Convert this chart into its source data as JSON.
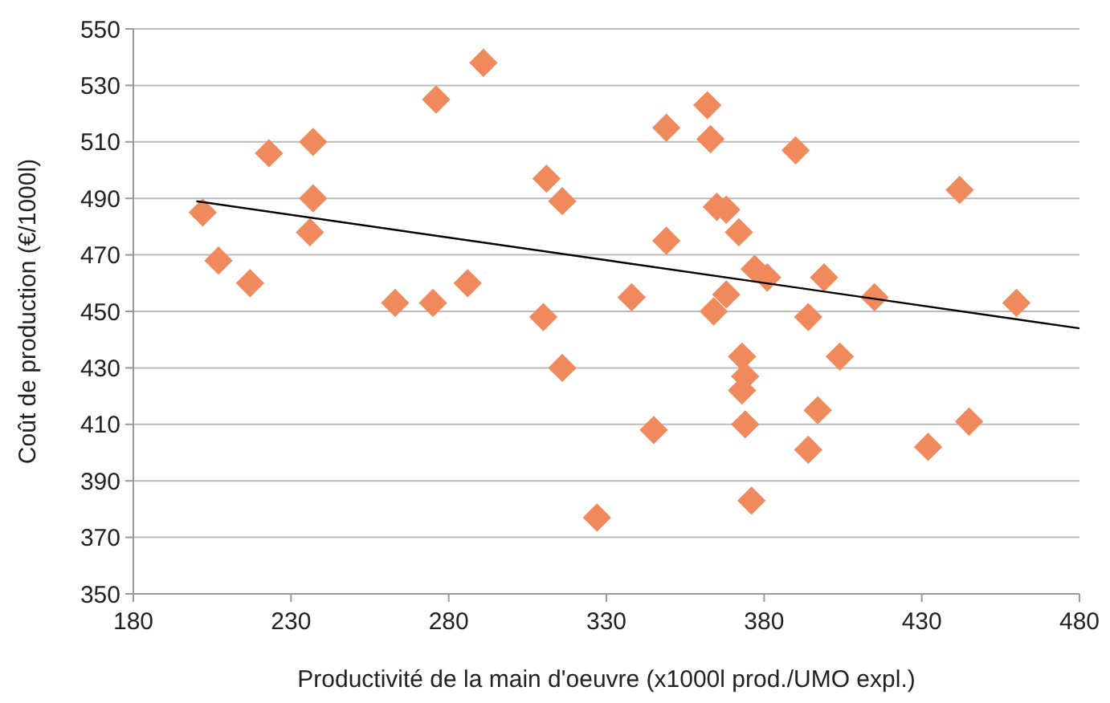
{
  "chart_data": {
    "type": "scatter",
    "xlabel": "Productivité de la main d'oeuvre (x1000l prod./UMO expl.)",
    "ylabel": "Coût de production (€/1000l)",
    "xlim": [
      180,
      480
    ],
    "xticks": [
      180,
      230,
      280,
      330,
      380,
      430,
      480
    ],
    "ylim": [
      350,
      550
    ],
    "yticks": [
      350,
      370,
      390,
      410,
      430,
      450,
      470,
      490,
      510,
      530,
      550
    ],
    "grid": "y",
    "marker": "diamond",
    "series": [
      {
        "color": "#f08a5d",
        "x": [
          202,
          207,
          217,
          223,
          237,
          237,
          236,
          263,
          275,
          276,
          286,
          291,
          311,
          316,
          310,
          316,
          327,
          338,
          345,
          349,
          349,
          362,
          363,
          365,
          368,
          364,
          368,
          372,
          377,
          381,
          373,
          374,
          373,
          374,
          376,
          390,
          394,
          399,
          397,
          394,
          404,
          415,
          432,
          442,
          445,
          460
        ],
        "values": [
          485,
          468,
          460,
          506,
          510,
          490,
          478,
          453,
          453,
          525,
          460,
          538,
          497,
          489,
          448,
          430,
          377,
          455,
          408,
          475,
          515,
          523,
          511,
          487,
          486,
          450,
          456,
          478,
          465,
          462,
          434,
          427,
          422,
          410,
          383,
          507,
          448,
          462,
          415,
          401,
          434,
          455,
          402,
          493,
          411,
          453
        ]
      },
      {
        "type": "line",
        "color": "#000000",
        "x": [
          200,
          480
        ],
        "values": [
          489,
          444
        ],
        "marker": "none"
      }
    ]
  }
}
